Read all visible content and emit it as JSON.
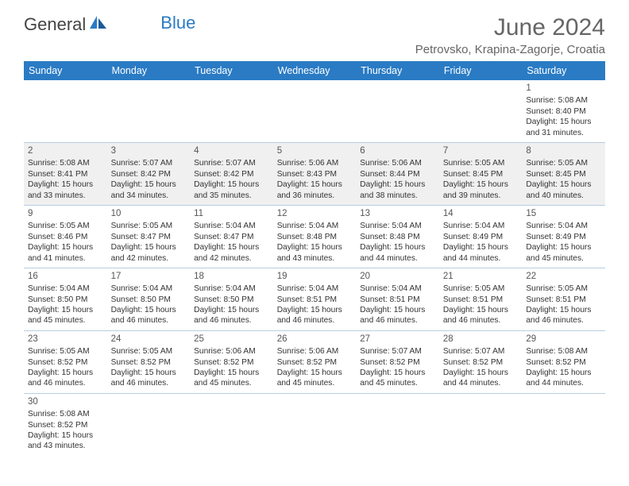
{
  "logo": {
    "text1": "General",
    "text2": "Blue"
  },
  "title": "June 2024",
  "location": "Petrovsko, Krapina-Zagorje, Croatia",
  "header_bg": "#2a7bc4",
  "header_fg": "#ffffff",
  "rule_color": "#b8cde0",
  "text_color": "#333333",
  "font_family": "Arial",
  "days": [
    "Sunday",
    "Monday",
    "Tuesday",
    "Wednesday",
    "Thursday",
    "Friday",
    "Saturday"
  ],
  "weeks": [
    [
      null,
      null,
      null,
      null,
      null,
      null,
      {
        "n": "1",
        "sr": "Sunrise: 5:08 AM",
        "ss": "Sunset: 8:40 PM",
        "d1": "Daylight: 15 hours",
        "d2": "and 31 minutes."
      }
    ],
    [
      {
        "n": "2",
        "sr": "Sunrise: 5:08 AM",
        "ss": "Sunset: 8:41 PM",
        "d1": "Daylight: 15 hours",
        "d2": "and 33 minutes."
      },
      {
        "n": "3",
        "sr": "Sunrise: 5:07 AM",
        "ss": "Sunset: 8:42 PM",
        "d1": "Daylight: 15 hours",
        "d2": "and 34 minutes."
      },
      {
        "n": "4",
        "sr": "Sunrise: 5:07 AM",
        "ss": "Sunset: 8:42 PM",
        "d1": "Daylight: 15 hours",
        "d2": "and 35 minutes."
      },
      {
        "n": "5",
        "sr": "Sunrise: 5:06 AM",
        "ss": "Sunset: 8:43 PM",
        "d1": "Daylight: 15 hours",
        "d2": "and 36 minutes."
      },
      {
        "n": "6",
        "sr": "Sunrise: 5:06 AM",
        "ss": "Sunset: 8:44 PM",
        "d1": "Daylight: 15 hours",
        "d2": "and 38 minutes."
      },
      {
        "n": "7",
        "sr": "Sunrise: 5:05 AM",
        "ss": "Sunset: 8:45 PM",
        "d1": "Daylight: 15 hours",
        "d2": "and 39 minutes."
      },
      {
        "n": "8",
        "sr": "Sunrise: 5:05 AM",
        "ss": "Sunset: 8:45 PM",
        "d1": "Daylight: 15 hours",
        "d2": "and 40 minutes."
      }
    ],
    [
      {
        "n": "9",
        "sr": "Sunrise: 5:05 AM",
        "ss": "Sunset: 8:46 PM",
        "d1": "Daylight: 15 hours",
        "d2": "and 41 minutes."
      },
      {
        "n": "10",
        "sr": "Sunrise: 5:05 AM",
        "ss": "Sunset: 8:47 PM",
        "d1": "Daylight: 15 hours",
        "d2": "and 42 minutes."
      },
      {
        "n": "11",
        "sr": "Sunrise: 5:04 AM",
        "ss": "Sunset: 8:47 PM",
        "d1": "Daylight: 15 hours",
        "d2": "and 42 minutes."
      },
      {
        "n": "12",
        "sr": "Sunrise: 5:04 AM",
        "ss": "Sunset: 8:48 PM",
        "d1": "Daylight: 15 hours",
        "d2": "and 43 minutes."
      },
      {
        "n": "13",
        "sr": "Sunrise: 5:04 AM",
        "ss": "Sunset: 8:48 PM",
        "d1": "Daylight: 15 hours",
        "d2": "and 44 minutes."
      },
      {
        "n": "14",
        "sr": "Sunrise: 5:04 AM",
        "ss": "Sunset: 8:49 PM",
        "d1": "Daylight: 15 hours",
        "d2": "and 44 minutes."
      },
      {
        "n": "15",
        "sr": "Sunrise: 5:04 AM",
        "ss": "Sunset: 8:49 PM",
        "d1": "Daylight: 15 hours",
        "d2": "and 45 minutes."
      }
    ],
    [
      {
        "n": "16",
        "sr": "Sunrise: 5:04 AM",
        "ss": "Sunset: 8:50 PM",
        "d1": "Daylight: 15 hours",
        "d2": "and 45 minutes."
      },
      {
        "n": "17",
        "sr": "Sunrise: 5:04 AM",
        "ss": "Sunset: 8:50 PM",
        "d1": "Daylight: 15 hours",
        "d2": "and 46 minutes."
      },
      {
        "n": "18",
        "sr": "Sunrise: 5:04 AM",
        "ss": "Sunset: 8:50 PM",
        "d1": "Daylight: 15 hours",
        "d2": "and 46 minutes."
      },
      {
        "n": "19",
        "sr": "Sunrise: 5:04 AM",
        "ss": "Sunset: 8:51 PM",
        "d1": "Daylight: 15 hours",
        "d2": "and 46 minutes."
      },
      {
        "n": "20",
        "sr": "Sunrise: 5:04 AM",
        "ss": "Sunset: 8:51 PM",
        "d1": "Daylight: 15 hours",
        "d2": "and 46 minutes."
      },
      {
        "n": "21",
        "sr": "Sunrise: 5:05 AM",
        "ss": "Sunset: 8:51 PM",
        "d1": "Daylight: 15 hours",
        "d2": "and 46 minutes."
      },
      {
        "n": "22",
        "sr": "Sunrise: 5:05 AM",
        "ss": "Sunset: 8:51 PM",
        "d1": "Daylight: 15 hours",
        "d2": "and 46 minutes."
      }
    ],
    [
      {
        "n": "23",
        "sr": "Sunrise: 5:05 AM",
        "ss": "Sunset: 8:52 PM",
        "d1": "Daylight: 15 hours",
        "d2": "and 46 minutes."
      },
      {
        "n": "24",
        "sr": "Sunrise: 5:05 AM",
        "ss": "Sunset: 8:52 PM",
        "d1": "Daylight: 15 hours",
        "d2": "and 46 minutes."
      },
      {
        "n": "25",
        "sr": "Sunrise: 5:06 AM",
        "ss": "Sunset: 8:52 PM",
        "d1": "Daylight: 15 hours",
        "d2": "and 45 minutes."
      },
      {
        "n": "26",
        "sr": "Sunrise: 5:06 AM",
        "ss": "Sunset: 8:52 PM",
        "d1": "Daylight: 15 hours",
        "d2": "and 45 minutes."
      },
      {
        "n": "27",
        "sr": "Sunrise: 5:07 AM",
        "ss": "Sunset: 8:52 PM",
        "d1": "Daylight: 15 hours",
        "d2": "and 45 minutes."
      },
      {
        "n": "28",
        "sr": "Sunrise: 5:07 AM",
        "ss": "Sunset: 8:52 PM",
        "d1": "Daylight: 15 hours",
        "d2": "and 44 minutes."
      },
      {
        "n": "29",
        "sr": "Sunrise: 5:08 AM",
        "ss": "Sunset: 8:52 PM",
        "d1": "Daylight: 15 hours",
        "d2": "and 44 minutes."
      }
    ],
    [
      {
        "n": "30",
        "sr": "Sunrise: 5:08 AM",
        "ss": "Sunset: 8:52 PM",
        "d1": "Daylight: 15 hours",
        "d2": "and 43 minutes."
      },
      null,
      null,
      null,
      null,
      null,
      null
    ]
  ]
}
